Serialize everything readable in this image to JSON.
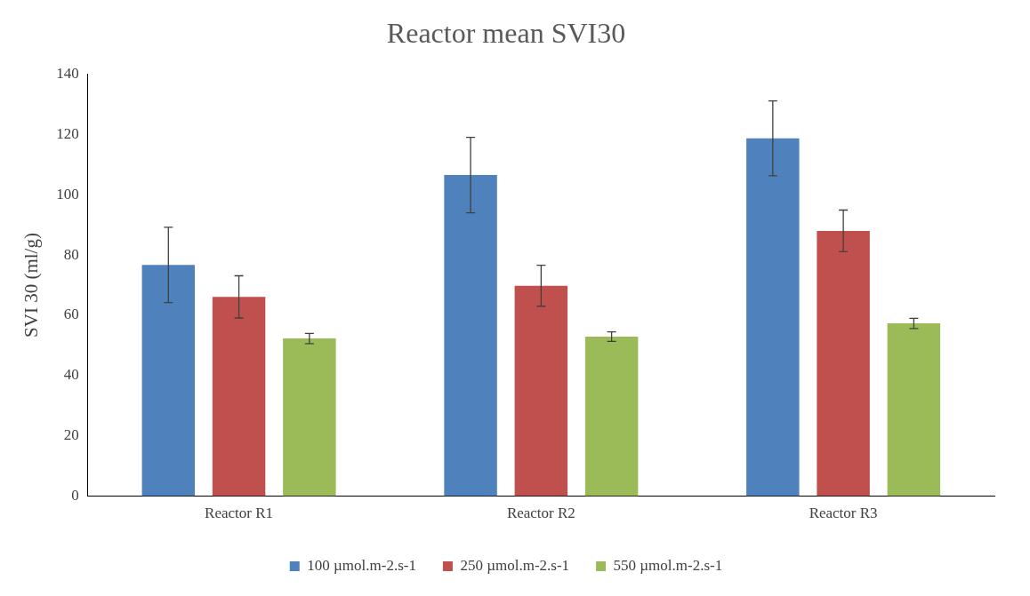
{
  "chart_data": {
    "type": "bar",
    "title": "Reactor mean SVI30",
    "ylabel": "SVI 30 (ml/g)",
    "categories": [
      "Reactor R1",
      "Reactor R2",
      "Reactor R3"
    ],
    "series": [
      {
        "name": "100 µmol.m-2.s-1",
        "color": "#4f81bd",
        "values": [
          76.7,
          106.5,
          118.7
        ],
        "errors": [
          12.5,
          12.5,
          12.4
        ]
      },
      {
        "name": "250 µmol.m-2.s-1",
        "color": "#c0504d",
        "values": [
          66.1,
          69.8,
          88
        ],
        "errors": [
          7,
          6.8,
          6.9
        ]
      },
      {
        "name": "550 µmol.m-2.s-1",
        "color": "#9bbb59",
        "values": [
          52.3,
          52.9,
          57.3
        ],
        "errors": [
          1.7,
          1.6,
          1.7
        ]
      }
    ],
    "ylim": [
      0,
      140
    ],
    "yticks": [
      0,
      20,
      40,
      60,
      80,
      100,
      120,
      140
    ],
    "grid": false,
    "legend": "bottom"
  }
}
